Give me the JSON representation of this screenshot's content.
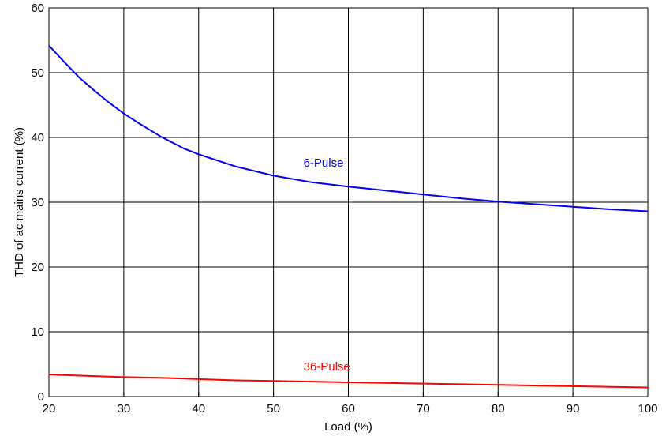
{
  "chart_data": {
    "type": "line",
    "xlabel": "Load (%)",
    "ylabel": "THD of ac mains current (%)",
    "xlim": [
      20,
      100
    ],
    "ylim": [
      0,
      60
    ],
    "xticks": [
      20,
      30,
      40,
      50,
      60,
      70,
      80,
      90,
      100
    ],
    "yticks": [
      0,
      10,
      20,
      30,
      40,
      50,
      60
    ],
    "grid": true,
    "series": [
      {
        "name": "6-Pulse",
        "color": "#0000ff",
        "x": [
          20,
          22,
          24,
          26,
          28,
          30,
          32,
          35,
          38,
          40,
          45,
          50,
          55,
          60,
          65,
          70,
          75,
          80,
          85,
          90,
          95,
          100
        ],
        "y": [
          54.2,
          51.7,
          49.3,
          47.3,
          45.4,
          43.7,
          42.2,
          40.1,
          38.3,
          37.4,
          35.5,
          34.1,
          33.1,
          32.4,
          31.8,
          31.2,
          30.6,
          30.1,
          29.7,
          29.3,
          28.9,
          28.6
        ]
      },
      {
        "name": "36-Pulse",
        "color": "#ff0000",
        "x": [
          20,
          25,
          30,
          35,
          40,
          45,
          50,
          55,
          60,
          65,
          70,
          75,
          80,
          85,
          90,
          95,
          100
        ],
        "y": [
          3.4,
          3.2,
          3.0,
          2.9,
          2.7,
          2.5,
          2.4,
          2.3,
          2.2,
          2.1,
          2.0,
          1.9,
          1.8,
          1.7,
          1.6,
          1.5,
          1.4
        ]
      }
    ],
    "annotations": [
      {
        "text": "6-Pulse",
        "series": "6-Pulse",
        "x": 54,
        "y": 35.5
      },
      {
        "text": "36-Pulse",
        "series": "36-Pulse",
        "x": 54,
        "y": 4.0
      }
    ]
  }
}
